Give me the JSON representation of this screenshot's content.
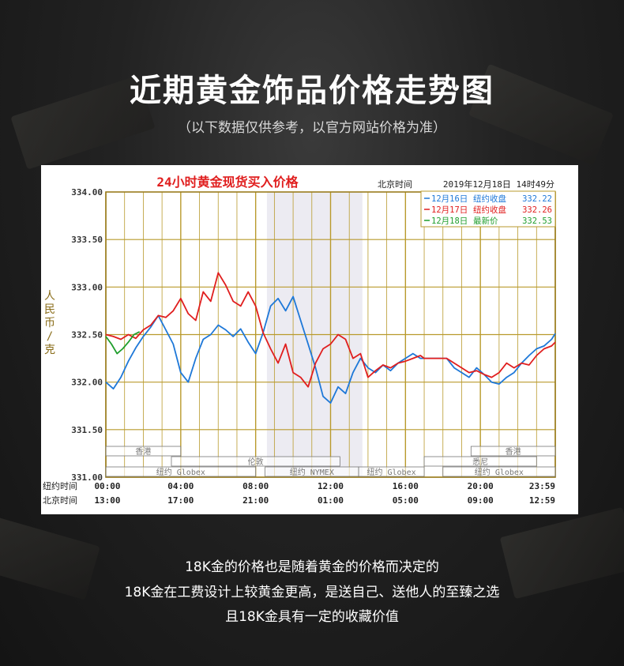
{
  "page": {
    "title": "近期黄金饰品价格走势图",
    "subtitle": "（以下数据仅供参考，以官方网站价格为准）",
    "captions": [
      "18K金的价格也是随着黄金的价格而决定的",
      "18K金在工费设计上较黄金更高，是送自己、送他人的至臻之选",
      "且18K金具有一定的收藏价值"
    ]
  },
  "chart_data": {
    "type": "line",
    "title": "24小时黄金现货买入价格",
    "timezone_label": "北京时间",
    "timestamp": "2019年12月18日 14时49分",
    "ylabel": "人民币/克",
    "ylim": [
      331.0,
      334.0
    ],
    "yticks": [
      "334.00",
      "333.50",
      "333.00",
      "332.50",
      "332.00",
      "331.50",
      "331.00"
    ],
    "xlim": [
      0,
      24
    ],
    "x_row1_label": "纽约时间",
    "x_row1_ticks": [
      "00:00",
      "04:00",
      "08:00",
      "12:00",
      "16:00",
      "20:00",
      "23:59"
    ],
    "x_row2_label": "北京时间",
    "x_row2_ticks": [
      "13:00",
      "17:00",
      "21:00",
      "01:00",
      "05:00",
      "09:00",
      "12:59"
    ],
    "markets": [
      {
        "label": "香港",
        "start": 0,
        "end": 4
      },
      {
        "label": "香港",
        "start": 19.5,
        "end": 24
      },
      {
        "label": "伦敦",
        "start": 3.5,
        "end": 12.5
      },
      {
        "label": "悉尼",
        "start": 17,
        "end": 23
      },
      {
        "label": "纽约 Globex",
        "start": 0,
        "end": 8
      },
      {
        "label": "纽约 NYMEX",
        "start": 8.5,
        "end": 13.5
      },
      {
        "label": "纽约 Globex",
        "start": 13.5,
        "end": 17
      },
      {
        "label": "纽约 Globex",
        "start": 18,
        "end": 24
      }
    ],
    "legend": [
      {
        "label": "12月16日",
        "detail": "纽约收盘",
        "value": "332.22",
        "color": "#1e78d8"
      },
      {
        "label": "12月17日",
        "detail": "纽约收盘",
        "value": "332.26",
        "color": "#e01e1e"
      },
      {
        "label": "12月18日",
        "detail": "最新价",
        "value": "332.53",
        "color": "#1f9e2c"
      }
    ],
    "series": [
      {
        "name": "12月16日",
        "color": "#1e78d8",
        "x": [
          0,
          0.4,
          0.8,
          1.2,
          1.6,
          2.0,
          2.4,
          2.8,
          3.2,
          3.6,
          4.0,
          4.4,
          4.8,
          5.2,
          5.6,
          6.0,
          6.4,
          6.8,
          7.2,
          7.6,
          8.0,
          8.4,
          8.8,
          9.2,
          9.6,
          10.0,
          10.4,
          10.8,
          11.2,
          11.6,
          12.0,
          12.4,
          12.8,
          13.2,
          13.6,
          14.0,
          14.4,
          14.8,
          15.2,
          15.6,
          16.0,
          16.4,
          16.8,
          17.0,
          17.4,
          17.8,
          18.2,
          18.6,
          19.0,
          19.4,
          19.8,
          20.2,
          20.6,
          21.0,
          21.4,
          21.8,
          22.2,
          22.6,
          23.0,
          23.4,
          23.8,
          24.0
        ],
        "values": [
          332.0,
          331.93,
          332.05,
          332.22,
          332.36,
          332.48,
          332.58,
          332.7,
          332.55,
          332.4,
          332.1,
          332.0,
          332.25,
          332.45,
          332.5,
          332.6,
          332.55,
          332.48,
          332.56,
          332.42,
          332.3,
          332.52,
          332.8,
          332.88,
          332.75,
          332.9,
          332.65,
          332.4,
          332.15,
          331.85,
          331.78,
          331.95,
          331.88,
          332.1,
          332.25,
          332.15,
          332.1,
          332.18,
          332.12,
          332.2,
          332.25,
          332.3,
          332.25,
          332.25,
          332.25,
          332.25,
          332.25,
          332.15,
          332.1,
          332.05,
          332.15,
          332.08,
          332.0,
          331.98,
          332.05,
          332.1,
          332.2,
          332.28,
          332.35,
          332.38,
          332.45,
          332.51
        ]
      },
      {
        "name": "12月17日",
        "color": "#e01e1e",
        "x": [
          0,
          0.4,
          0.8,
          1.2,
          1.6,
          2.0,
          2.4,
          2.8,
          3.2,
          3.6,
          4.0,
          4.4,
          4.8,
          5.2,
          5.6,
          6.0,
          6.4,
          6.8,
          7.2,
          7.6,
          8.0,
          8.4,
          8.8,
          9.2,
          9.6,
          10.0,
          10.4,
          10.8,
          11.2,
          11.6,
          12.0,
          12.4,
          12.8,
          13.2,
          13.6,
          14.0,
          14.4,
          14.8,
          15.2,
          15.6,
          16.0,
          16.4,
          16.8,
          17.0,
          17.4,
          17.8,
          18.2,
          18.6,
          19.0,
          19.4,
          19.8,
          20.2,
          20.6,
          21.0,
          21.4,
          21.8,
          22.2,
          22.6,
          23.0,
          23.4,
          23.8,
          24.0
        ],
        "values": [
          332.5,
          332.48,
          332.45,
          332.5,
          332.46,
          332.55,
          332.6,
          332.7,
          332.68,
          332.75,
          332.88,
          332.72,
          332.65,
          332.95,
          332.85,
          333.15,
          333.02,
          332.85,
          332.8,
          332.95,
          332.8,
          332.52,
          332.35,
          332.2,
          332.4,
          332.1,
          332.05,
          331.95,
          332.2,
          332.35,
          332.4,
          332.5,
          332.45,
          332.25,
          332.3,
          332.05,
          332.12,
          332.18,
          332.15,
          332.2,
          332.22,
          332.25,
          332.28,
          332.25,
          332.25,
          332.25,
          332.25,
          332.2,
          332.15,
          332.1,
          332.12,
          332.08,
          332.05,
          332.1,
          332.2,
          332.15,
          332.2,
          332.18,
          332.28,
          332.35,
          332.38,
          332.42
        ]
      },
      {
        "name": "12月18日",
        "color": "#1f9e2c",
        "x": [
          0,
          0.3,
          0.6,
          0.9,
          1.2,
          1.5,
          1.8
        ],
        "values": [
          332.48,
          332.4,
          332.3,
          332.35,
          332.42,
          332.5,
          332.53
        ]
      }
    ]
  }
}
